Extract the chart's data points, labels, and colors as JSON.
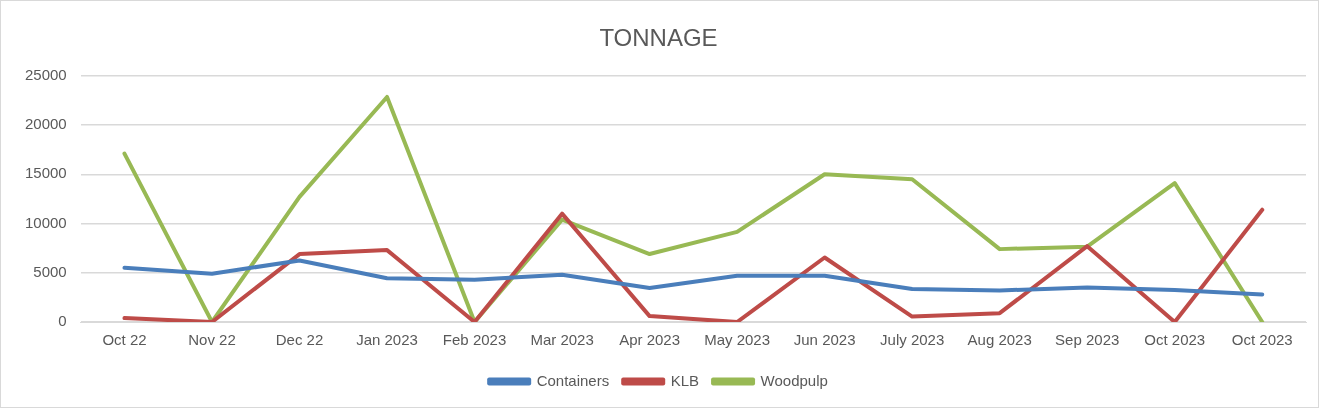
{
  "chart_data": {
    "type": "line",
    "title": "TONNAGE",
    "categories": [
      "Oct 22",
      "Nov 22",
      "Dec 22",
      "Jan 2023",
      "Feb 2023",
      "Mar 2023",
      "Apr 2023",
      "May 2023",
      "Jun 2023",
      "July 2023",
      "Aug 2023",
      "Sep 2023",
      "Oct 2023",
      "Oct 2023"
    ],
    "series": [
      {
        "name": "Containers",
        "color": "#4a7ebb",
        "values": [
          5500,
          4900,
          6250,
          4450,
          4300,
          4800,
          3450,
          4700,
          4700,
          3350,
          3200,
          3500,
          3250,
          2800
        ]
      },
      {
        "name": "KLB",
        "color": "#be4b48",
        "values": [
          400,
          0,
          6900,
          7300,
          0,
          11000,
          600,
          0,
          6550,
          550,
          900,
          7700,
          0,
          11400
        ]
      },
      {
        "name": "Woodpulp",
        "color": "#98b954",
        "values": [
          17100,
          0,
          12700,
          22850,
          0,
          10400,
          6900,
          9150,
          15000,
          14500,
          7400,
          7650,
          14100,
          0
        ]
      }
    ],
    "ylim": [
      0,
      25000
    ],
    "yticks": [
      0,
      5000,
      10000,
      15000,
      20000,
      25000
    ],
    "grid": "y",
    "legend": "bottom",
    "marker": "none",
    "line_style": "solid"
  }
}
